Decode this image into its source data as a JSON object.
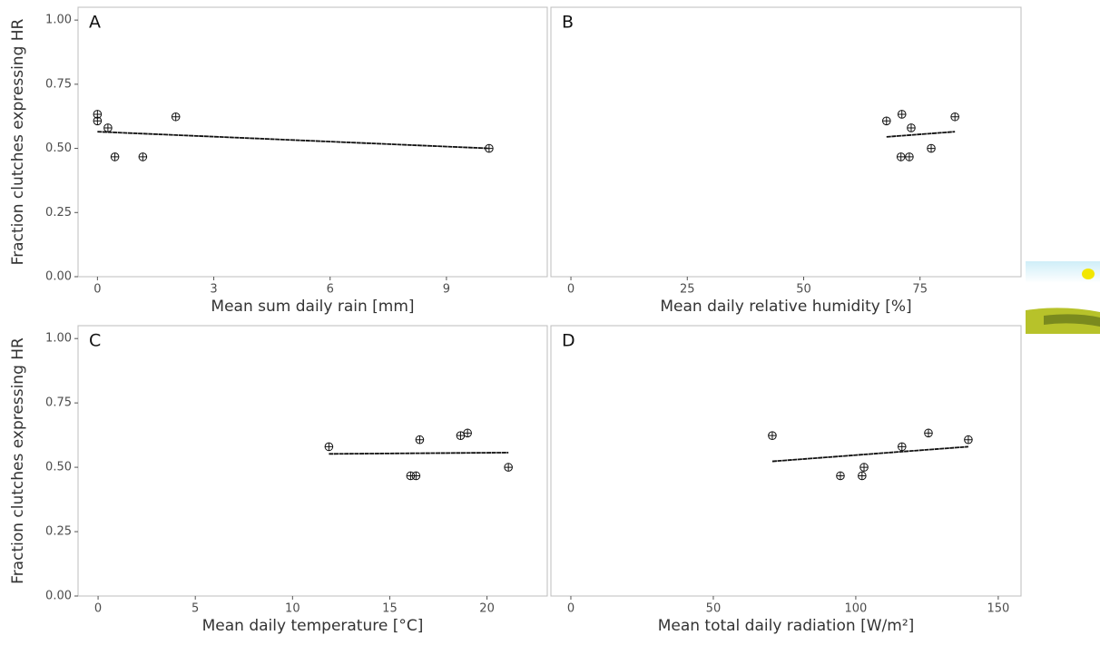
{
  "chart_data": [
    {
      "type": "scatter",
      "panel": "A",
      "y_label": "Fraction clutches expressing HR",
      "x_label": "Mean sum daily rain [mm]",
      "x": [
        0,
        0,
        0.27,
        0.45,
        1.17,
        2.02,
        10.1
      ],
      "values": [
        0.633,
        0.607,
        0.58,
        0.467,
        0.467,
        0.623,
        0.5
      ],
      "trend_x": [
        0,
        10.1
      ],
      "trend_values": [
        0.565,
        0.5
      ],
      "xlim": [
        -0.5,
        11.6
      ],
      "xticks": [
        0,
        3,
        6,
        9
      ],
      "ylim": [
        0,
        1.05
      ],
      "yticks": [
        {
          "value": 0,
          "label": "0.00"
        },
        {
          "value": 0.25,
          "label": "0.25"
        },
        {
          "value": 0.5,
          "label": "0.50"
        },
        {
          "value": 0.75,
          "label": "0.75"
        },
        {
          "value": 1,
          "label": "1.00"
        }
      ]
    },
    {
      "type": "scatter",
      "panel": "B",
      "x_label": "Mean daily relative humidity [%]",
      "x": [
        67.8,
        71.1,
        70.9,
        72.7,
        73.1,
        77.4,
        82.5
      ],
      "values": [
        0.607,
        0.633,
        0.467,
        0.467,
        0.58,
        0.5,
        0.623
      ],
      "trend_x": [
        67.8,
        82.5
      ],
      "trend_values": [
        0.545,
        0.565
      ],
      "xlim": [
        -4.3,
        96.7
      ],
      "xticks": [
        0,
        25,
        50,
        75
      ],
      "ylim": [
        0,
        1.05
      ]
    },
    {
      "type": "scatter",
      "panel": "C",
      "y_label": "Fraction clutches expressing HR",
      "x_label": "Mean daily temperature [°C]",
      "x": [
        11.87,
        16.07,
        16.35,
        16.54,
        18.64,
        19.0,
        21.1
      ],
      "values": [
        0.58,
        0.467,
        0.467,
        0.607,
        0.623,
        0.633,
        0.5
      ],
      "trend_x": [
        11.87,
        21.1
      ],
      "trend_values": [
        0.552,
        0.557
      ],
      "xlim": [
        -1.03,
        23.1
      ],
      "xticks": [
        0,
        5,
        10,
        15,
        20
      ],
      "ylim": [
        0,
        1.05
      ],
      "yticks": [
        {
          "value": 0,
          "label": "0.00"
        },
        {
          "value": 0.25,
          "label": "0.25"
        },
        {
          "value": 0.5,
          "label": "0.50"
        },
        {
          "value": 0.75,
          "label": "0.75"
        },
        {
          "value": 1,
          "label": "1.00"
        }
      ]
    },
    {
      "type": "scatter",
      "panel": "D",
      "x_label": "Mean total daily radiation [W/m²]",
      "x": [
        70.7,
        94.6,
        102.2,
        102.9,
        116.2,
        125.5,
        139.5
      ],
      "values": [
        0.623,
        0.467,
        0.467,
        0.5,
        0.58,
        0.633,
        0.607
      ],
      "trend_x": [
        70.7,
        139.5
      ],
      "trend_values": [
        0.523,
        0.58
      ],
      "xlim": [
        -7,
        158
      ],
      "xticks": [
        0,
        50,
        100,
        150
      ],
      "ylim": [
        0,
        1.05
      ]
    }
  ]
}
